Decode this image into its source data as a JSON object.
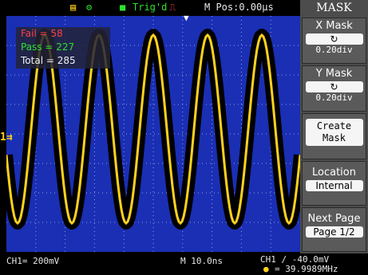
{
  "top_bar": {
    "trig_status": "Trig'd",
    "m_pos": "M Pos:0.00µs"
  },
  "stats": {
    "fail": "Fail = 58",
    "pass": "Pass = 227",
    "total": "Total = 285"
  },
  "markers": {
    "trigger": "▼",
    "channel": "1⇉"
  },
  "menu": {
    "title": "MASK",
    "x_mask": {
      "label": "X Mask",
      "icon": "↻",
      "value": "0.20div"
    },
    "y_mask": {
      "label": "Y Mask",
      "icon": "↻",
      "value": "0.20div"
    },
    "create_mask": {
      "line1": "Create",
      "line2": "Mask"
    },
    "location": {
      "label": "Location",
      "value": "Internal"
    },
    "next_page": {
      "label": "Next Page",
      "value": "Page 1/2"
    }
  },
  "bottom_bar": {
    "ch1_scale": "CH1= 200mV",
    "timebase": "M 10.0ns",
    "trigger_level": "CH1 ∕ -40.0mV",
    "frequency": "= 39.9989MHz"
  },
  "colors": {
    "screen": "#1a2fb4",
    "trace": "#ffd21e",
    "mask": "#000000",
    "fail": "#ff4040",
    "pass": "#2ee02e",
    "menu": "#4c4c4c"
  }
}
